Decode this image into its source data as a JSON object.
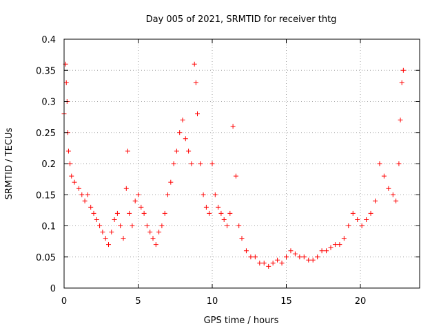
{
  "chart_data": {
    "type": "scatter",
    "title": "Day 005 of 2021, SRMTID for receiver thtg",
    "xlabel": "GPS time / hours",
    "ylabel": "SRMTID / TECUs",
    "xlim": [
      0,
      24
    ],
    "ylim": [
      0,
      0.4
    ],
    "grid": true,
    "x_ticks": [
      0,
      5,
      10,
      15,
      20
    ],
    "x_tick_labels": [
      "0",
      "5",
      "10",
      "15",
      "20"
    ],
    "y_ticks": [
      0,
      0.05,
      0.1,
      0.15,
      0.2,
      0.25,
      0.3,
      0.35,
      0.4
    ],
    "y_tick_labels": [
      "0",
      "0.05",
      "0.1",
      "0.15",
      "0.2",
      "0.25",
      "0.3",
      "0.35",
      "0.4"
    ],
    "marker": "plus",
    "color": "#ff0000",
    "series": [
      {
        "name": "SRMTID",
        "x": [
          0.0,
          0.1,
          0.15,
          0.2,
          0.25,
          0.3,
          0.4,
          0.5,
          0.7,
          1.0,
          1.2,
          1.4,
          1.6,
          1.8,
          2.0,
          2.2,
          2.4,
          2.6,
          2.8,
          3.0,
          3.2,
          3.4,
          3.6,
          3.8,
          4.0,
          4.2,
          4.3,
          4.4,
          4.6,
          4.8,
          5.0,
          5.2,
          5.4,
          5.6,
          5.8,
          6.0,
          6.2,
          6.4,
          6.6,
          6.8,
          7.0,
          7.2,
          7.4,
          7.6,
          7.8,
          8.0,
          8.2,
          8.4,
          8.6,
          8.8,
          8.9,
          9.0,
          9.2,
          9.4,
          9.6,
          9.8,
          10.0,
          10.2,
          10.4,
          10.6,
          10.8,
          11.0,
          11.2,
          11.4,
          11.6,
          11.8,
          12.0,
          12.3,
          12.6,
          12.9,
          13.2,
          13.5,
          13.8,
          14.1,
          14.4,
          14.7,
          15.0,
          15.3,
          15.6,
          15.9,
          16.2,
          16.5,
          16.8,
          17.1,
          17.4,
          17.7,
          18.0,
          18.3,
          18.6,
          18.9,
          19.2,
          19.5,
          19.8,
          20.1,
          20.4,
          20.7,
          21.0,
          21.3,
          21.6,
          21.9,
          22.2,
          22.4,
          22.6,
          22.7,
          22.8,
          22.9
        ],
        "y": [
          0.28,
          0.36,
          0.33,
          0.3,
          0.25,
          0.22,
          0.2,
          0.18,
          0.17,
          0.16,
          0.15,
          0.14,
          0.15,
          0.13,
          0.12,
          0.11,
          0.1,
          0.09,
          0.08,
          0.07,
          0.09,
          0.11,
          0.12,
          0.1,
          0.08,
          0.16,
          0.22,
          0.12,
          0.1,
          0.14,
          0.15,
          0.13,
          0.12,
          0.1,
          0.09,
          0.08,
          0.07,
          0.09,
          0.1,
          0.12,
          0.15,
          0.17,
          0.2,
          0.22,
          0.25,
          0.27,
          0.24,
          0.22,
          0.2,
          0.36,
          0.33,
          0.28,
          0.2,
          0.15,
          0.13,
          0.12,
          0.2,
          0.15,
          0.13,
          0.12,
          0.11,
          0.1,
          0.12,
          0.26,
          0.18,
          0.1,
          0.08,
          0.06,
          0.05,
          0.05,
          0.04,
          0.04,
          0.035,
          0.04,
          0.045,
          0.04,
          0.05,
          0.06,
          0.055,
          0.05,
          0.05,
          0.045,
          0.045,
          0.05,
          0.06,
          0.06,
          0.065,
          0.07,
          0.07,
          0.08,
          0.1,
          0.12,
          0.11,
          0.1,
          0.11,
          0.12,
          0.14,
          0.2,
          0.18,
          0.16,
          0.15,
          0.14,
          0.2,
          0.27,
          0.33,
          0.35
        ]
      }
    ]
  }
}
